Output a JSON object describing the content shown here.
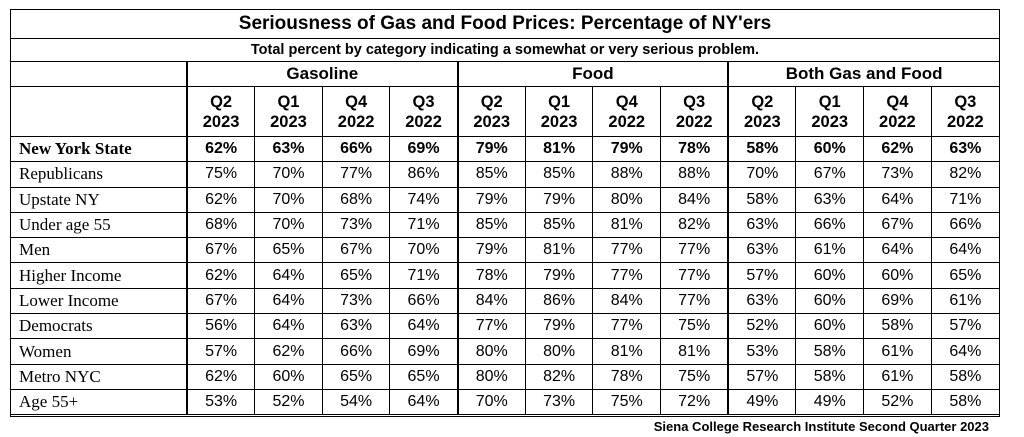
{
  "chart_data": {
    "type": "table",
    "title": "Seriousness of Gas and Food Prices:  Percentage of NY'ers",
    "subtitle": "Total percent by category indicating a somewhat or very serious problem.",
    "source": "Siena College Research Institute Second Quarter 2023",
    "groups": [
      "Gasoline",
      "Food",
      "Both Gas and Food"
    ],
    "quarters": [
      {
        "q": "Q2",
        "y": "2023"
      },
      {
        "q": "Q1",
        "y": "2023"
      },
      {
        "q": "Q4",
        "y": "2022"
      },
      {
        "q": "Q3",
        "y": "2022"
      }
    ],
    "rows": [
      {
        "label": "New York State",
        "bold": true,
        "values": [
          "62%",
          "63%",
          "66%",
          "69%",
          "79%",
          "81%",
          "79%",
          "78%",
          "58%",
          "60%",
          "62%",
          "63%"
        ]
      },
      {
        "label": "Republicans",
        "bold": false,
        "values": [
          "75%",
          "70%",
          "77%",
          "86%",
          "85%",
          "85%",
          "88%",
          "88%",
          "70%",
          "67%",
          "73%",
          "82%"
        ]
      },
      {
        "label": "Upstate NY",
        "bold": false,
        "values": [
          "62%",
          "70%",
          "68%",
          "74%",
          "79%",
          "79%",
          "80%",
          "84%",
          "58%",
          "63%",
          "64%",
          "71%"
        ]
      },
      {
        "label": "Under age 55",
        "bold": false,
        "values": [
          "68%",
          "70%",
          "73%",
          "71%",
          "85%",
          "85%",
          "81%",
          "82%",
          "63%",
          "66%",
          "67%",
          "66%"
        ]
      },
      {
        "label": "Men",
        "bold": false,
        "values": [
          "67%",
          "65%",
          "67%",
          "70%",
          "79%",
          "81%",
          "77%",
          "77%",
          "63%",
          "61%",
          "64%",
          "64%"
        ]
      },
      {
        "label": "Higher Income",
        "bold": false,
        "values": [
          "62%",
          "64%",
          "65%",
          "71%",
          "78%",
          "79%",
          "77%",
          "77%",
          "57%",
          "60%",
          "60%",
          "65%"
        ]
      },
      {
        "label": "Lower Income",
        "bold": false,
        "values": [
          "67%",
          "64%",
          "73%",
          "66%",
          "84%",
          "86%",
          "84%",
          "77%",
          "63%",
          "60%",
          "69%",
          "61%"
        ]
      },
      {
        "label": "Democrats",
        "bold": false,
        "values": [
          "56%",
          "64%",
          "63%",
          "64%",
          "77%",
          "79%",
          "77%",
          "75%",
          "52%",
          "60%",
          "58%",
          "57%"
        ]
      },
      {
        "label": "Women",
        "bold": false,
        "values": [
          "57%",
          "62%",
          "66%",
          "69%",
          "80%",
          "80%",
          "81%",
          "81%",
          "53%",
          "58%",
          "61%",
          "64%"
        ]
      },
      {
        "label": "Metro NYC",
        "bold": false,
        "values": [
          "62%",
          "60%",
          "65%",
          "65%",
          "80%",
          "82%",
          "78%",
          "75%",
          "57%",
          "58%",
          "61%",
          "58%"
        ]
      },
      {
        "label": "Age 55+",
        "bold": false,
        "values": [
          "53%",
          "52%",
          "54%",
          "64%",
          "70%",
          "73%",
          "75%",
          "72%",
          "49%",
          "49%",
          "52%",
          "58%"
        ]
      }
    ]
  }
}
